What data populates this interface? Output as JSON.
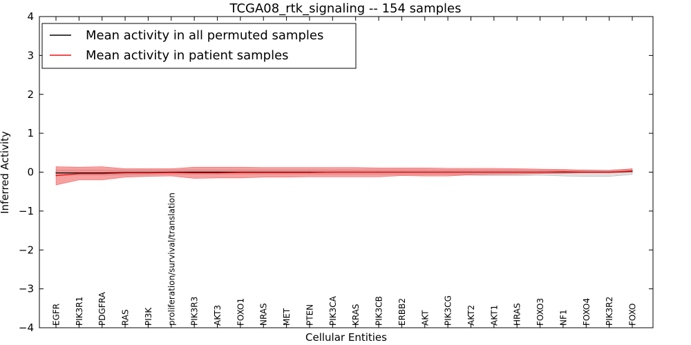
{
  "chart_data": {
    "type": "line",
    "title": "TCGA08_rtk_signaling -- 154 samples",
    "xlabel": "Cellular Entities",
    "ylabel": "Inferred Activity",
    "ylim": [
      -4,
      4
    ],
    "yticks": [
      {
        "value": -4,
        "label": "−4"
      },
      {
        "value": -3,
        "label": "−3"
      },
      {
        "value": -2,
        "label": "−2"
      },
      {
        "value": -1,
        "label": "−1"
      },
      {
        "value": 0,
        "label": "0"
      },
      {
        "value": 1,
        "label": "1"
      },
      {
        "value": 2,
        "label": "2"
      },
      {
        "value": 3,
        "label": "3"
      },
      {
        "value": 4,
        "label": "4"
      }
    ],
    "legend_position": "top-left",
    "categories": [
      "EGFR",
      "PIK3R1",
      "PDGFRA",
      "RAS",
      "PI3K",
      "proliferation/survival/translation",
      "PIK3R3",
      "AKT3",
      "FOXO1",
      "NRAS",
      "MET",
      "PTEN",
      "PIK3CA",
      "KRAS",
      "PIK3CB",
      "ERBB2",
      "AKT",
      "PIK3CG",
      "AKT2",
      "AKT1",
      "HRAS",
      "FOXO3",
      "NF1",
      "FOXO4",
      "PIK3R2",
      "FOXO"
    ],
    "series": [
      {
        "name": "Mean activity in all permuted samples",
        "color": "#000000",
        "band_color": "#bbbbbb",
        "values": [
          -0.02,
          -0.02,
          -0.02,
          -0.01,
          -0.01,
          0.0,
          0.0,
          0.0,
          0.0,
          0.0,
          0.0,
          0.0,
          0.0,
          0.0,
          0.0,
          0.0,
          0.0,
          0.0,
          0.0,
          0.0,
          0.0,
          0.0,
          0.0,
          0.0,
          0.0,
          0.02
        ],
        "lower": [
          -0.08,
          -0.08,
          -0.08,
          -0.07,
          -0.06,
          -0.05,
          -0.05,
          -0.05,
          -0.05,
          -0.05,
          -0.05,
          -0.05,
          -0.05,
          -0.05,
          -0.05,
          -0.05,
          -0.05,
          -0.06,
          -0.08,
          -0.09,
          -0.09,
          -0.08,
          -0.1,
          -0.11,
          -0.11,
          -0.06
        ],
        "upper": [
          0.05,
          0.05,
          0.05,
          0.05,
          0.06,
          0.06,
          0.06,
          0.06,
          0.06,
          0.06,
          0.06,
          0.06,
          0.06,
          0.06,
          0.06,
          0.06,
          0.06,
          0.06,
          0.06,
          0.06,
          0.06,
          0.06,
          0.06,
          0.06,
          0.06,
          0.08
        ]
      },
      {
        "name": "Mean activity in patient samples",
        "color": "#ee1111",
        "band_color": "#f06060",
        "values": [
          -0.09,
          -0.04,
          -0.04,
          -0.02,
          -0.02,
          -0.01,
          -0.02,
          -0.02,
          -0.01,
          -0.01,
          -0.01,
          -0.01,
          0.0,
          0.0,
          0.0,
          0.0,
          0.0,
          0.0,
          0.0,
          0.0,
          0.0,
          0.0,
          0.01,
          0.0,
          0.0,
          0.03
        ],
        "lower": [
          -0.33,
          -0.2,
          -0.2,
          -0.13,
          -0.11,
          -0.1,
          -0.16,
          -0.15,
          -0.15,
          -0.13,
          -0.13,
          -0.12,
          -0.12,
          -0.12,
          -0.12,
          -0.09,
          -0.1,
          -0.1,
          -0.07,
          -0.06,
          -0.05,
          -0.04,
          -0.03,
          -0.02,
          -0.02,
          0.0
        ],
        "upper": [
          0.14,
          0.13,
          0.14,
          0.09,
          0.09,
          0.09,
          0.13,
          0.13,
          0.13,
          0.12,
          0.12,
          0.12,
          0.12,
          0.12,
          0.11,
          0.11,
          0.11,
          0.1,
          0.1,
          0.1,
          0.09,
          0.08,
          0.07,
          0.05,
          0.04,
          0.09
        ]
      }
    ]
  }
}
